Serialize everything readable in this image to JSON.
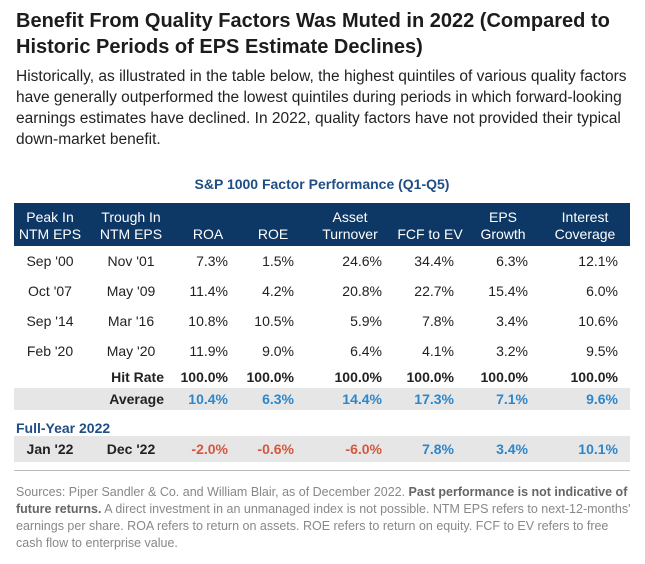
{
  "header": {
    "title": "Benefit From Quality Factors Was Muted in 2022 (Compared to Historic Periods of EPS Estimate Declines)",
    "intro": "Historically, as illustrated in the table below, the highest quintiles of various quality factors have generally outperformed the lowest quintiles during periods in which forward-looking earnings estimates have declined. In 2022, quality factors have not provided their typical down-market benefit."
  },
  "table": {
    "title": "S&P 1000 Factor Performance (Q1-Q5)",
    "columns": [
      "Peak In NTM EPS",
      "Trough In NTM EPS",
      "ROA",
      "ROE",
      "Asset Turnover",
      "FCF to EV",
      "EPS Growth",
      "Interest Coverage"
    ],
    "rows": [
      [
        "Sep '00",
        "Nov '01",
        "7.3%",
        "1.5%",
        "24.6%",
        "34.4%",
        "6.3%",
        "12.1%"
      ],
      [
        "Oct '07",
        "May '09",
        "11.4%",
        "4.2%",
        "20.8%",
        "22.7%",
        "15.4%",
        "6.0%"
      ],
      [
        "Sep '14",
        "Mar '16",
        "10.8%",
        "10.5%",
        "5.9%",
        "7.8%",
        "3.4%",
        "10.6%"
      ],
      [
        "Feb '20",
        "May '20",
        "11.9%",
        "9.0%",
        "6.4%",
        "4.1%",
        "3.2%",
        "9.5%"
      ]
    ],
    "hit_rate": {
      "label": "Hit Rate",
      "values": [
        "100.0%",
        "100.0%",
        "100.0%",
        "100.0%",
        "100.0%",
        "100.0%"
      ]
    },
    "average": {
      "label": "Average",
      "values": [
        "10.4%",
        "6.3%",
        "14.4%",
        "17.3%",
        "7.1%",
        "9.6%"
      ]
    },
    "full_year": {
      "label": "Full-Year 2022",
      "row": [
        "Jan '22",
        "Dec '22",
        "-2.0%",
        "-0.6%",
        "-6.0%",
        "7.8%",
        "3.4%",
        "10.1%"
      ]
    }
  },
  "sources": {
    "part1": "Sources: Piper Sandler & Co. and William Blair, as of December 2022. ",
    "part2": "Past performance is not indicative of future returns.",
    "part3": " A direct investment in an unmanaged index is not possible. NTM EPS refers to next-12-months' earnings per share. ROA refers to return on assets. ROE refers to return on equity. FCF to EV refers to free cash flow to enterprise value."
  }
}
